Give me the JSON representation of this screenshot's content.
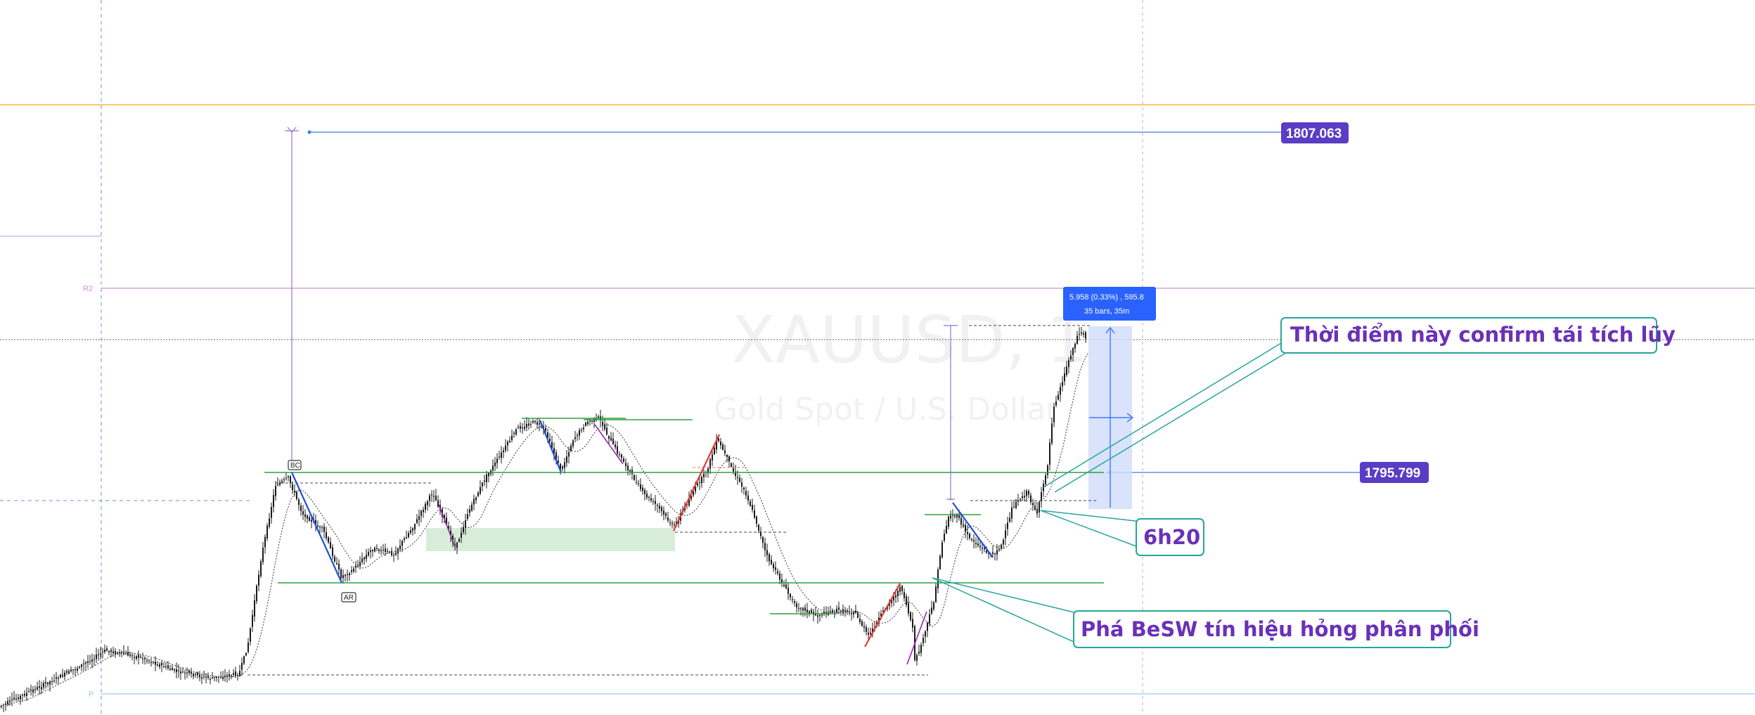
{
  "chart_data": {
    "type": "candlestick",
    "watermark": {
      "symbol": "XAUUSD, 1",
      "description": "Gold Spot / U.S. Dollar"
    },
    "price_labels": [
      {
        "name": "target",
        "value": "1807.063",
        "color": "#5b3cc4"
      },
      {
        "name": "level",
        "value": "1795.799",
        "color": "#5b3cc4"
      }
    ],
    "measure_tooltip": {
      "line1": "5.958 (0.33%) , 595.8",
      "line2": "35 bars, 35m",
      "color": "#2962ff"
    },
    "pivot_labels": {
      "r2": "R2",
      "p": "P"
    },
    "wyckoff_tags": {
      "bc": "BC",
      "ar": "AR"
    },
    "annotations": [
      {
        "name": "confirm-reaccumulation",
        "text": "Thời điểm này confirm tái tích lũy"
      },
      {
        "name": "time-6h20",
        "text": "6h20"
      },
      {
        "name": "break-besw",
        "text": "Phá BeSW tín hiệu hỏng phân phối"
      }
    ],
    "colors": {
      "candles": "#1a1a1a",
      "support_lines": "#2e9e3e",
      "pivot_line": "#ce93d8",
      "orange_line": "#f5a623",
      "grid_dash": "#6a8fd8",
      "callout_border": "#26a69a",
      "callout_text": "#6a31b8",
      "swing_blue": "#1e4fd6",
      "swing_red": "#e53935",
      "swing_purple": "#9c27b0"
    }
  }
}
